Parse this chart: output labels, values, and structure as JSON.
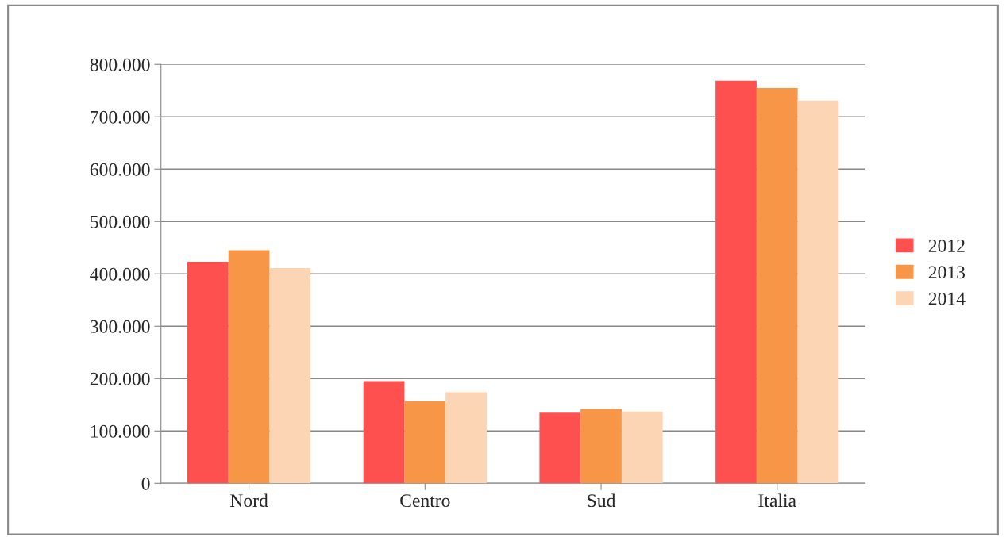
{
  "chart_data": {
    "type": "bar",
    "categories": [
      "Nord",
      "Centro",
      "Sud",
      "Italia"
    ],
    "series": [
      {
        "name": "2012",
        "color": "#ff5050",
        "values": [
          423000,
          195000,
          135000,
          769000
        ]
      },
      {
        "name": "2013",
        "color": "#f79646",
        "values": [
          445000,
          157000,
          142000,
          755000
        ]
      },
      {
        "name": "2014",
        "color": "#fcd5b5",
        "values": [
          411000,
          174000,
          137000,
          731000
        ]
      }
    ],
    "ylim": [
      0,
      800000
    ],
    "yticks": [
      {
        "value": 0,
        "label": "0"
      },
      {
        "value": 100000,
        "label": "100.000"
      },
      {
        "value": 200000,
        "label": "200.000"
      },
      {
        "value": 300000,
        "label": "300.000"
      },
      {
        "value": 400000,
        "label": "400.000"
      },
      {
        "value": 500000,
        "label": "500.000"
      },
      {
        "value": 600000,
        "label": "600.000"
      },
      {
        "value": 700000,
        "label": "700.000"
      },
      {
        "value": 800000,
        "label": "800.000"
      }
    ],
    "grid": "y",
    "legend": "right"
  }
}
